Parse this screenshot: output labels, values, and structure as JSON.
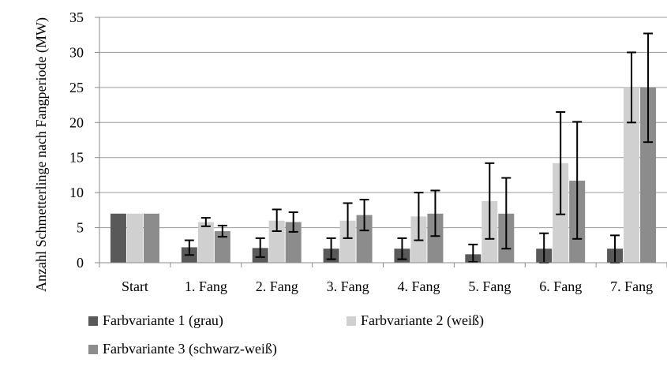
{
  "chart_data": {
    "type": "bar",
    "ylabel": "Anzahl Schmetterlinge nach Fangperiode (MW)",
    "xlabel": "",
    "ylim": [
      0,
      35
    ],
    "yticks": [
      0,
      5,
      10,
      15,
      20,
      25,
      30,
      35
    ],
    "grid": true,
    "legend_position": "bottom",
    "categories": [
      "Start",
      "1. Fang",
      "2. Fang",
      "3. Fang",
      "4. Fang",
      "5. Fang",
      "6. Fang",
      "7. Fang"
    ],
    "series": [
      {
        "name": "Farbvariante 1 (grau)",
        "color": "#595959",
        "values": [
          7.0,
          2.2,
          2.1,
          2.0,
          2.0,
          1.2,
          2.0,
          2.0
        ],
        "err_low": [
          null,
          1.1,
          0.8,
          0.5,
          0.5,
          0.1,
          0.0,
          0.0
        ],
        "err_high": [
          null,
          3.2,
          3.5,
          3.5,
          3.5,
          2.6,
          4.2,
          3.9
        ]
      },
      {
        "name": "Farbvariante 2 (weiß)",
        "color": "#d0d0d0",
        "values": [
          7.0,
          5.8,
          6.0,
          6.0,
          6.6,
          8.8,
          14.2,
          25.0
        ],
        "err_low": [
          null,
          5.2,
          4.5,
          3.5,
          3.2,
          3.4,
          6.9,
          20.0
        ],
        "err_high": [
          null,
          6.4,
          7.6,
          8.5,
          10.0,
          14.2,
          21.5,
          30.0
        ]
      },
      {
        "name": "Farbvariante 3 (schwarz-weiß)",
        "color": "#8c8c8c",
        "values": [
          7.0,
          4.5,
          5.8,
          6.8,
          7.0,
          7.0,
          11.7,
          25.0
        ],
        "err_low": [
          null,
          3.7,
          4.4,
          4.6,
          3.8,
          2.0,
          3.4,
          17.2
        ],
        "err_high": [
          null,
          5.3,
          7.2,
          9.0,
          10.3,
          12.1,
          20.1,
          32.7
        ]
      }
    ]
  }
}
